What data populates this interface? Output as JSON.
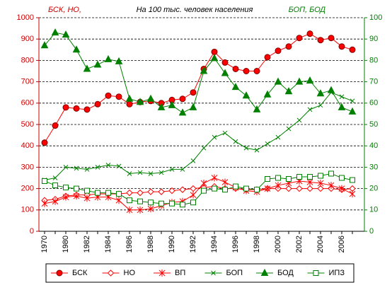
{
  "chart_data": {
    "type": "line",
    "title": "На 100 тыс. человек населения",
    "ylabel": "БСК, НО,",
    "y2label": "БОП, БОД",
    "categories": [
      "1970",
      null,
      "1980",
      null,
      "1982",
      null,
      "1984",
      null,
      "1986",
      null,
      "1988",
      null,
      "1990",
      null,
      "1992",
      null,
      "1994",
      null,
      "1996",
      null,
      "1998",
      null,
      "2000",
      null,
      "2002",
      null,
      "2004",
      null,
      "2006",
      null
    ],
    "ylim": [
      0,
      1000
    ],
    "yticks": [
      0,
      100,
      200,
      300,
      400,
      500,
      600,
      700,
      800,
      900,
      1000
    ],
    "y2lim": [
      0,
      100
    ],
    "y2ticks": [
      0,
      10,
      20,
      30,
      40,
      50,
      60,
      70,
      80,
      90,
      100
    ],
    "ycolor": "#cc0000",
    "y2color": "#008000",
    "grid": true,
    "legend": "bottom",
    "series": [
      {
        "name": "БСК",
        "color": "#ff0000",
        "marker": "circle",
        "values": [
          415,
          495,
          580,
          575,
          570,
          595,
          635,
          630,
          595,
          605,
          610,
          600,
          615,
          620,
          650,
          760,
          840,
          790,
          760,
          750,
          750,
          815,
          845,
          865,
          905,
          925,
          895,
          905,
          865,
          850
        ]
      },
      {
        "name": "НО",
        "color": "#ff0000",
        "marker": "diamond-open",
        "values": [
          145,
          150,
          165,
          170,
          170,
          175,
          175,
          175,
          180,
          180,
          185,
          185,
          190,
          195,
          200,
          205,
          210,
          200,
          200,
          195,
          195,
          200,
          200,
          200,
          200,
          200,
          200,
          200,
          195,
          200
        ]
      },
      {
        "name": "ВП",
        "color": "#ff0000",
        "marker": "star",
        "values": [
          130,
          140,
          160,
          165,
          155,
          160,
          160,
          145,
          100,
          100,
          105,
          120,
          135,
          140,
          170,
          225,
          250,
          230,
          205,
          190,
          185,
          200,
          215,
          225,
          235,
          230,
          225,
          215,
          200,
          175
        ]
      },
      {
        "name": "БОП",
        "color": "#008000",
        "marker": "x",
        "axis": "y2",
        "values": [
          24,
          25,
          30,
          29.5,
          29,
          30,
          31,
          30.5,
          27,
          27.5,
          27,
          27.5,
          29,
          29,
          33,
          39,
          44,
          46,
          42,
          39,
          38,
          41,
          44,
          48,
          52,
          57,
          59,
          65,
          63,
          61
        ]
      },
      {
        "name": "БОД",
        "color": "#008000",
        "marker": "triangle",
        "axis": "y2",
        "values": [
          87,
          93,
          92,
          85,
          76,
          78,
          80.5,
          79.5,
          62,
          60.5,
          62,
          58,
          59,
          55.5,
          58,
          75,
          81,
          74,
          67.5,
          63.5,
          57,
          64,
          70,
          65.5,
          70,
          70.5,
          64.5,
          66,
          58,
          56
        ]
      },
      {
        "name": "ИПЗ",
        "color": "#008000",
        "marker": "square-open",
        "axis": "y2",
        "values": [
          23.5,
          21.5,
          20.5,
          20,
          19,
          18,
          18,
          17.5,
          14.5,
          14,
          13.5,
          13,
          13,
          12.5,
          13.5,
          19,
          20,
          19.5,
          21,
          20,
          19.5,
          24.5,
          25,
          24.5,
          25.5,
          25.5,
          26,
          27,
          25,
          24
        ]
      }
    ]
  }
}
